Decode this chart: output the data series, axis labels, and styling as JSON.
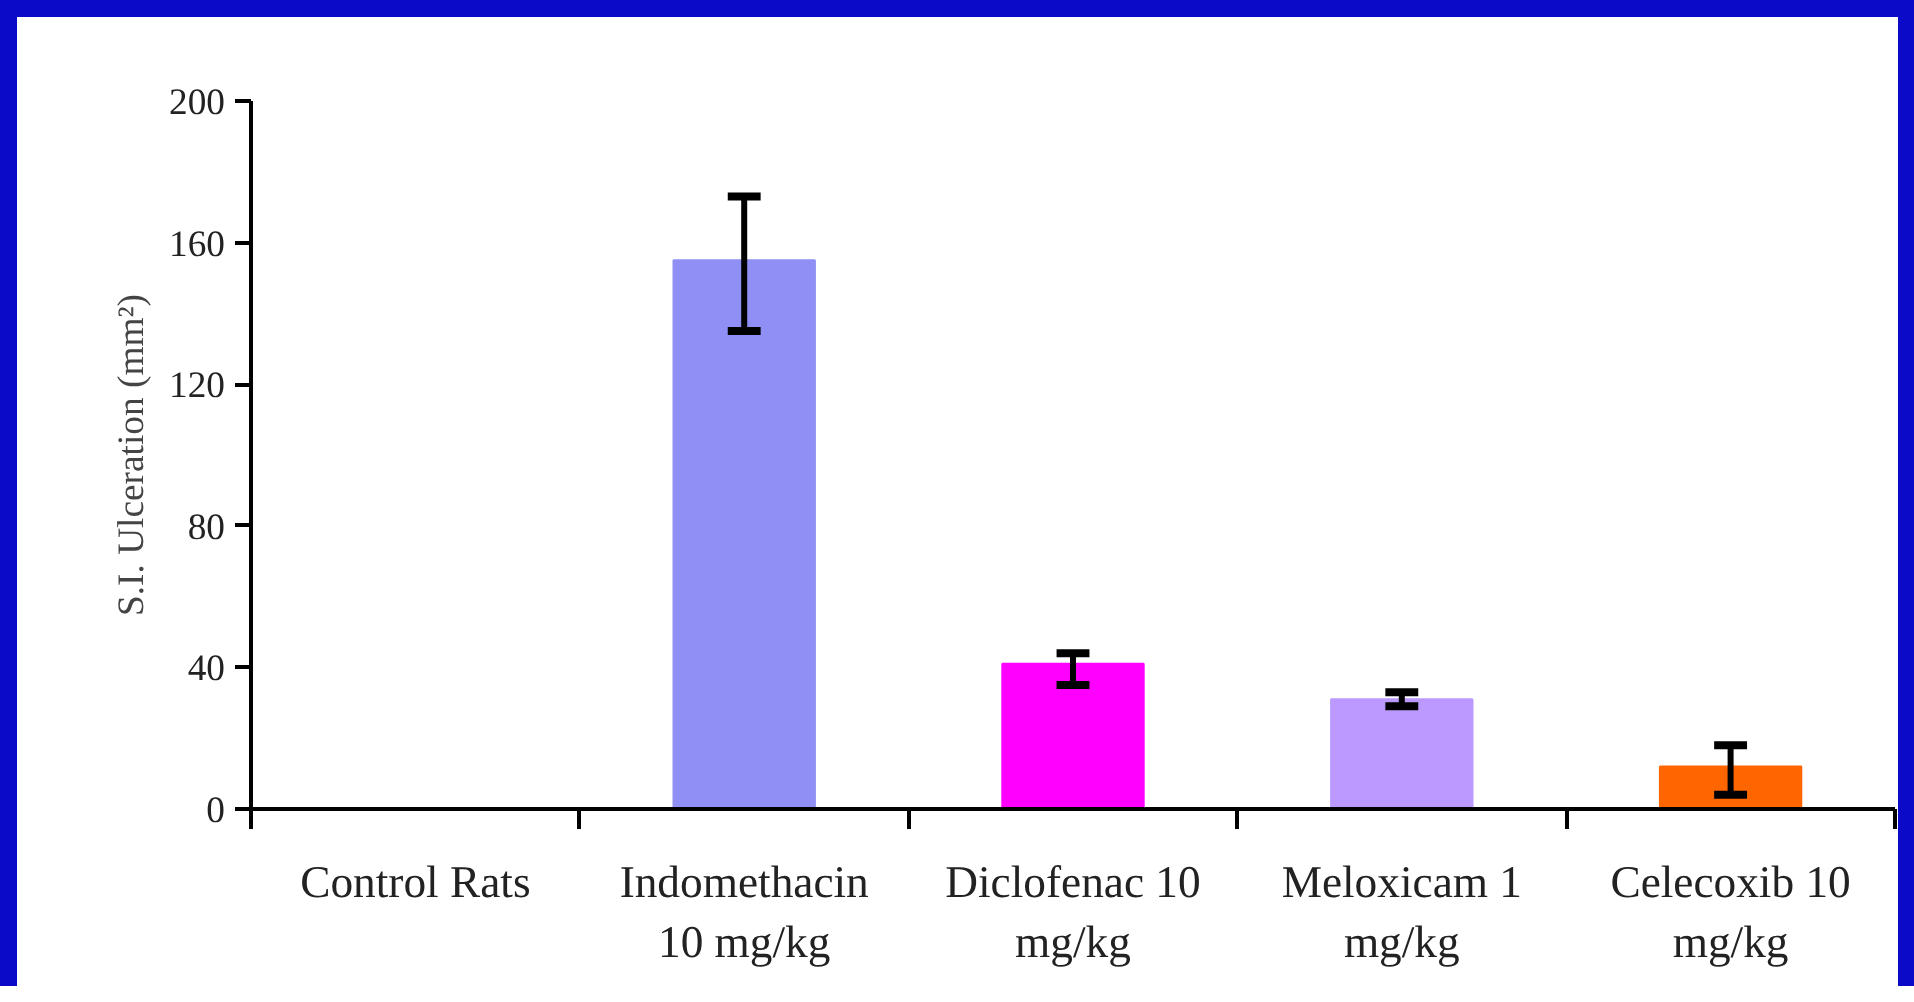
{
  "chart_data": {
    "type": "bar",
    "ylabel": "S.I. Ulceration (mm²)",
    "categories": [
      "Control Rats",
      "Indomethacin\n10 mg/kg",
      "Diclofenac 10\nmg/kg",
      "Meloxicam 1\nmg/kg",
      "Celecoxib 10\nmg/kg"
    ],
    "values": [
      0,
      155,
      41,
      31,
      12
    ],
    "colors": [
      "#000000",
      "#8f8ff5",
      "#ff00ff",
      "#bb99ff",
      "#ff6600"
    ],
    "errors": [
      null,
      [
        135,
        173
      ],
      [
        35,
        44
      ],
      [
        29,
        33
      ],
      [
        4,
        18
      ]
    ],
    "ylim": [
      0,
      200
    ],
    "yticks": [
      0,
      40,
      80,
      120,
      160,
      200
    ],
    "grid": false
  }
}
